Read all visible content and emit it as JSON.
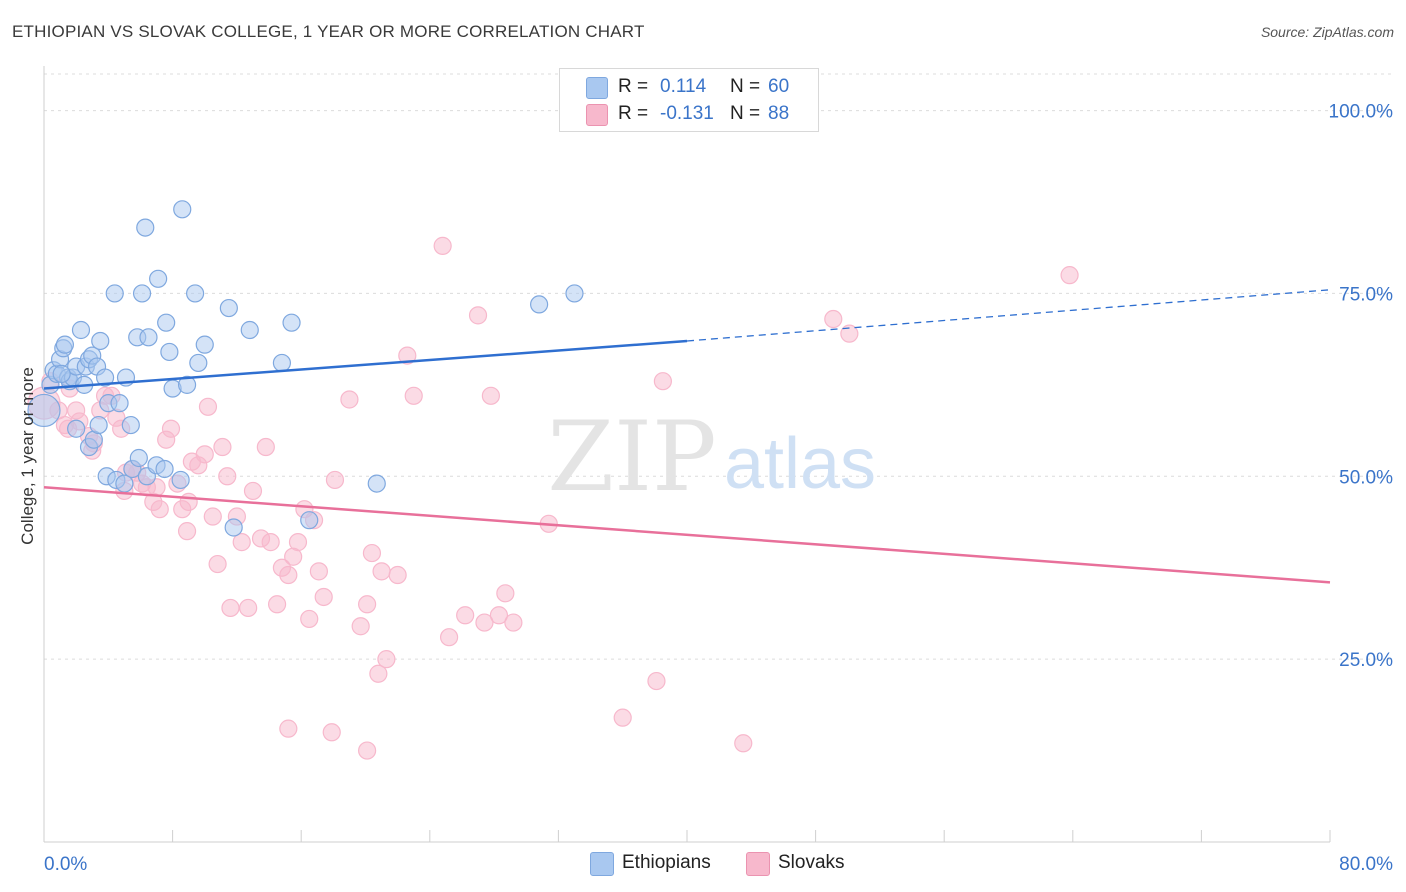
{
  "title": "ETHIOPIAN VS SLOVAK COLLEGE, 1 YEAR OR MORE CORRELATION CHART",
  "source": "Source: ZipAtlas.com",
  "watermark": {
    "zip": "ZIP",
    "atlas": "atlas"
  },
  "legend": {
    "rows": [
      {
        "r_label": "R =",
        "r_value": "0.114",
        "n_label": "N =",
        "n_value": "60",
        "color": "#a9c8f0"
      },
      {
        "r_label": "R =",
        "r_value": "-0.131",
        "n_label": "N =",
        "n_value": "88",
        "color": "#f7b8cc"
      }
    ]
  },
  "bottom_legend": {
    "ethiopians": "Ethiopians",
    "slovaks": "Slovaks"
  },
  "chart_data": {
    "type": "scatter",
    "title": "ETHIOPIAN VS SLOVAK COLLEGE, 1 YEAR OR MORE CORRELATION CHART",
    "xlabel": "",
    "ylabel": "College, 1 year or more",
    "xlim": [
      0,
      80
    ],
    "ylim": [
      0,
      105
    ],
    "x_tick_labels": [
      "0.0%",
      "80.0%"
    ],
    "y_ticks": [
      25,
      50,
      75,
      100
    ],
    "y_tick_labels": [
      "25.0%",
      "50.0%",
      "75.0%",
      "100.0%"
    ],
    "grid": true,
    "colors": {
      "ethiopians_fill": "#a9c8f0",
      "ethiopians_line": "#2f6fd0",
      "slovaks_fill": "#f7b8cc",
      "slovaks_line": "#e8709a",
      "tick_text": "#3a74c9"
    },
    "series": [
      {
        "name": "Ethiopians",
        "points": [
          [
            0.0,
            59.0
          ],
          [
            0.4,
            62.5
          ],
          [
            0.6,
            64.5
          ],
          [
            0.8,
            64.0
          ],
          [
            1.0,
            66.0
          ],
          [
            1.2,
            67.5
          ],
          [
            1.3,
            68.0
          ],
          [
            1.5,
            63.5
          ],
          [
            1.6,
            63.0
          ],
          [
            1.8,
            63.5
          ],
          [
            2.0,
            65.0
          ],
          [
            2.3,
            70.0
          ],
          [
            2.6,
            65.0
          ],
          [
            2.8,
            66.0
          ],
          [
            3.0,
            66.5
          ],
          [
            3.3,
            65.0
          ],
          [
            3.5,
            68.5
          ],
          [
            3.8,
            63.5
          ],
          [
            4.0,
            60.0
          ],
          [
            4.4,
            75.0
          ],
          [
            4.7,
            60.0
          ],
          [
            5.1,
            63.5
          ],
          [
            5.4,
            57.0
          ],
          [
            5.8,
            69.0
          ],
          [
            6.1,
            75.0
          ],
          [
            6.3,
            84.0
          ],
          [
            6.5,
            69.0
          ],
          [
            7.1,
            77.0
          ],
          [
            7.6,
            71.0
          ],
          [
            7.8,
            67.0
          ],
          [
            8.0,
            62.0
          ],
          [
            8.6,
            86.5
          ],
          [
            8.9,
            62.5
          ],
          [
            9.4,
            75.0
          ],
          [
            9.6,
            65.5
          ],
          [
            10.0,
            68.0
          ],
          [
            11.5,
            73.0
          ],
          [
            12.8,
            70.0
          ],
          [
            14.8,
            65.5
          ],
          [
            15.4,
            71.0
          ],
          [
            20.7,
            49.0
          ],
          [
            30.8,
            73.5
          ],
          [
            33.0,
            75.0
          ],
          [
            1.1,
            64.0
          ],
          [
            2.0,
            56.5
          ],
          [
            2.8,
            54.0
          ],
          [
            3.1,
            55.0
          ],
          [
            3.4,
            57.0
          ],
          [
            3.9,
            50.0
          ],
          [
            4.5,
            49.5
          ],
          [
            5.0,
            49.0
          ],
          [
            5.5,
            51.0
          ],
          [
            5.9,
            52.5
          ],
          [
            6.4,
            50.0
          ],
          [
            7.0,
            51.5
          ],
          [
            7.5,
            51.0
          ],
          [
            8.5,
            49.5
          ],
          [
            11.8,
            43.0
          ],
          [
            16.5,
            44.0
          ],
          [
            2.5,
            62.5
          ]
        ]
      },
      {
        "name": "Slovaks",
        "points": [
          [
            0.0,
            60.0
          ],
          [
            0.4,
            63.0
          ],
          [
            0.9,
            59.0
          ],
          [
            1.3,
            57.0
          ],
          [
            1.5,
            56.5
          ],
          [
            2.0,
            59.0
          ],
          [
            2.2,
            57.5
          ],
          [
            2.8,
            55.5
          ],
          [
            3.1,
            54.5
          ],
          [
            3.5,
            59.0
          ],
          [
            3.8,
            61.0
          ],
          [
            4.2,
            61.0
          ],
          [
            4.5,
            58.0
          ],
          [
            4.8,
            56.5
          ],
          [
            5.1,
            50.5
          ],
          [
            5.5,
            51.0
          ],
          [
            5.8,
            50.5
          ],
          [
            6.1,
            49.0
          ],
          [
            6.4,
            48.5
          ],
          [
            6.8,
            46.5
          ],
          [
            7.2,
            45.5
          ],
          [
            7.6,
            55.0
          ],
          [
            7.9,
            56.5
          ],
          [
            8.3,
            49.0
          ],
          [
            8.6,
            45.5
          ],
          [
            8.9,
            42.5
          ],
          [
            9.2,
            52.0
          ],
          [
            9.6,
            51.5
          ],
          [
            10.0,
            53.0
          ],
          [
            10.2,
            59.5
          ],
          [
            10.5,
            44.5
          ],
          [
            10.8,
            38.0
          ],
          [
            11.1,
            54.0
          ],
          [
            11.4,
            50.0
          ],
          [
            11.6,
            32.0
          ],
          [
            12.0,
            44.5
          ],
          [
            12.3,
            41.0
          ],
          [
            12.7,
            32.0
          ],
          [
            13.0,
            48.0
          ],
          [
            13.5,
            41.5
          ],
          [
            13.8,
            54.0
          ],
          [
            14.1,
            41.0
          ],
          [
            14.5,
            32.5
          ],
          [
            14.8,
            37.5
          ],
          [
            15.2,
            36.5
          ],
          [
            15.5,
            39.0
          ],
          [
            15.8,
            41.0
          ],
          [
            16.2,
            45.5
          ],
          [
            16.5,
            30.5
          ],
          [
            16.8,
            44.0
          ],
          [
            17.1,
            37.0
          ],
          [
            17.4,
            33.5
          ],
          [
            18.1,
            49.5
          ],
          [
            19.0,
            60.5
          ],
          [
            19.7,
            29.5
          ],
          [
            20.1,
            32.5
          ],
          [
            20.4,
            39.5
          ],
          [
            21.0,
            37.0
          ],
          [
            21.3,
            25.0
          ],
          [
            20.8,
            23.0
          ],
          [
            22.0,
            36.5
          ],
          [
            22.6,
            66.5
          ],
          [
            23.0,
            61.0
          ],
          [
            24.8,
            81.5
          ],
          [
            25.2,
            28.0
          ],
          [
            26.2,
            31.0
          ],
          [
            27.0,
            72.0
          ],
          [
            27.4,
            30.0
          ],
          [
            27.8,
            61.0
          ],
          [
            28.3,
            31.0
          ],
          [
            28.7,
            34.0
          ],
          [
            29.2,
            30.0
          ],
          [
            31.4,
            43.5
          ],
          [
            36.0,
            17.0
          ],
          [
            38.1,
            22.0
          ],
          [
            38.5,
            63.0
          ],
          [
            43.5,
            13.5
          ],
          [
            49.1,
            71.5
          ],
          [
            50.1,
            69.5
          ],
          [
            63.8,
            77.5
          ],
          [
            15.2,
            15.5
          ],
          [
            17.9,
            15.0
          ],
          [
            20.1,
            12.5
          ],
          [
            5.0,
            48.0
          ],
          [
            7.0,
            48.5
          ],
          [
            3.0,
            53.5
          ],
          [
            1.6,
            62.0
          ],
          [
            9.0,
            46.5
          ]
        ]
      }
    ],
    "trendlines": [
      {
        "series": "Ethiopians",
        "x": [
          0,
          40
        ],
        "y": [
          62,
          68.5
        ],
        "dashed_extension_to_x": 80,
        "dashed_extension_y": 75.5
      },
      {
        "series": "Slovaks",
        "x": [
          0,
          80
        ],
        "y": [
          48.5,
          35.5
        ]
      }
    ]
  }
}
